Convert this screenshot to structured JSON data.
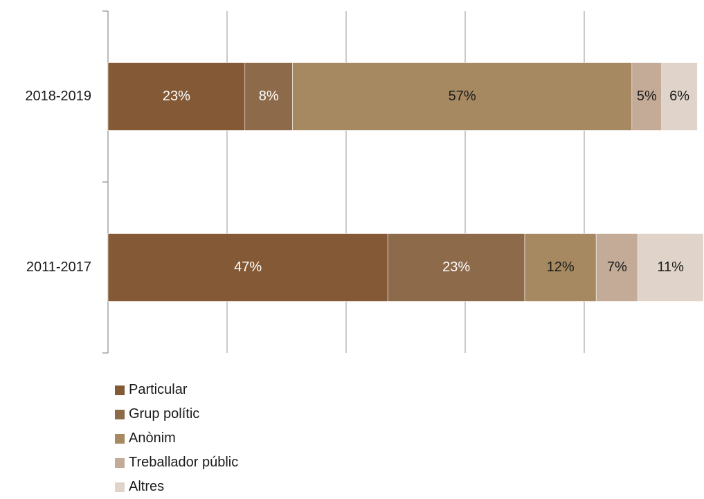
{
  "chart_data": {
    "type": "bar",
    "orientation": "horizontal",
    "stacked": true,
    "categories": [
      "2018-2019",
      "2011-2017"
    ],
    "series": [
      {
        "name": "Particular",
        "values": [
          23,
          47
        ],
        "labels": [
          "23%",
          "47%"
        ],
        "color": "#845A36",
        "label_color": "#ffffff"
      },
      {
        "name": "Grup polític",
        "values": [
          8,
          23
        ],
        "labels": [
          "8%",
          "23%"
        ],
        "color": "#8D6A49",
        "label_color": "#ffffff"
      },
      {
        "name": "Anònim",
        "values": [
          57,
          12
        ],
        "labels": [
          "57%",
          "12%"
        ],
        "color": "#A68961",
        "label_color": "#1a1a1a"
      },
      {
        "name": "Treballador públic",
        "values": [
          5,
          7
        ],
        "labels": [
          "5%",
          "7%"
        ],
        "color": "#C3AB97",
        "label_color": "#1a1a1a"
      },
      {
        "name": "Altres",
        "values": [
          6,
          11
        ],
        "labels": [
          "6%",
          "11%"
        ],
        "color": "#E0D4CA",
        "label_color": "#1a1a1a"
      }
    ],
    "xlim": [
      0,
      100
    ],
    "grid": true,
    "legend_position": "bottom-left"
  }
}
